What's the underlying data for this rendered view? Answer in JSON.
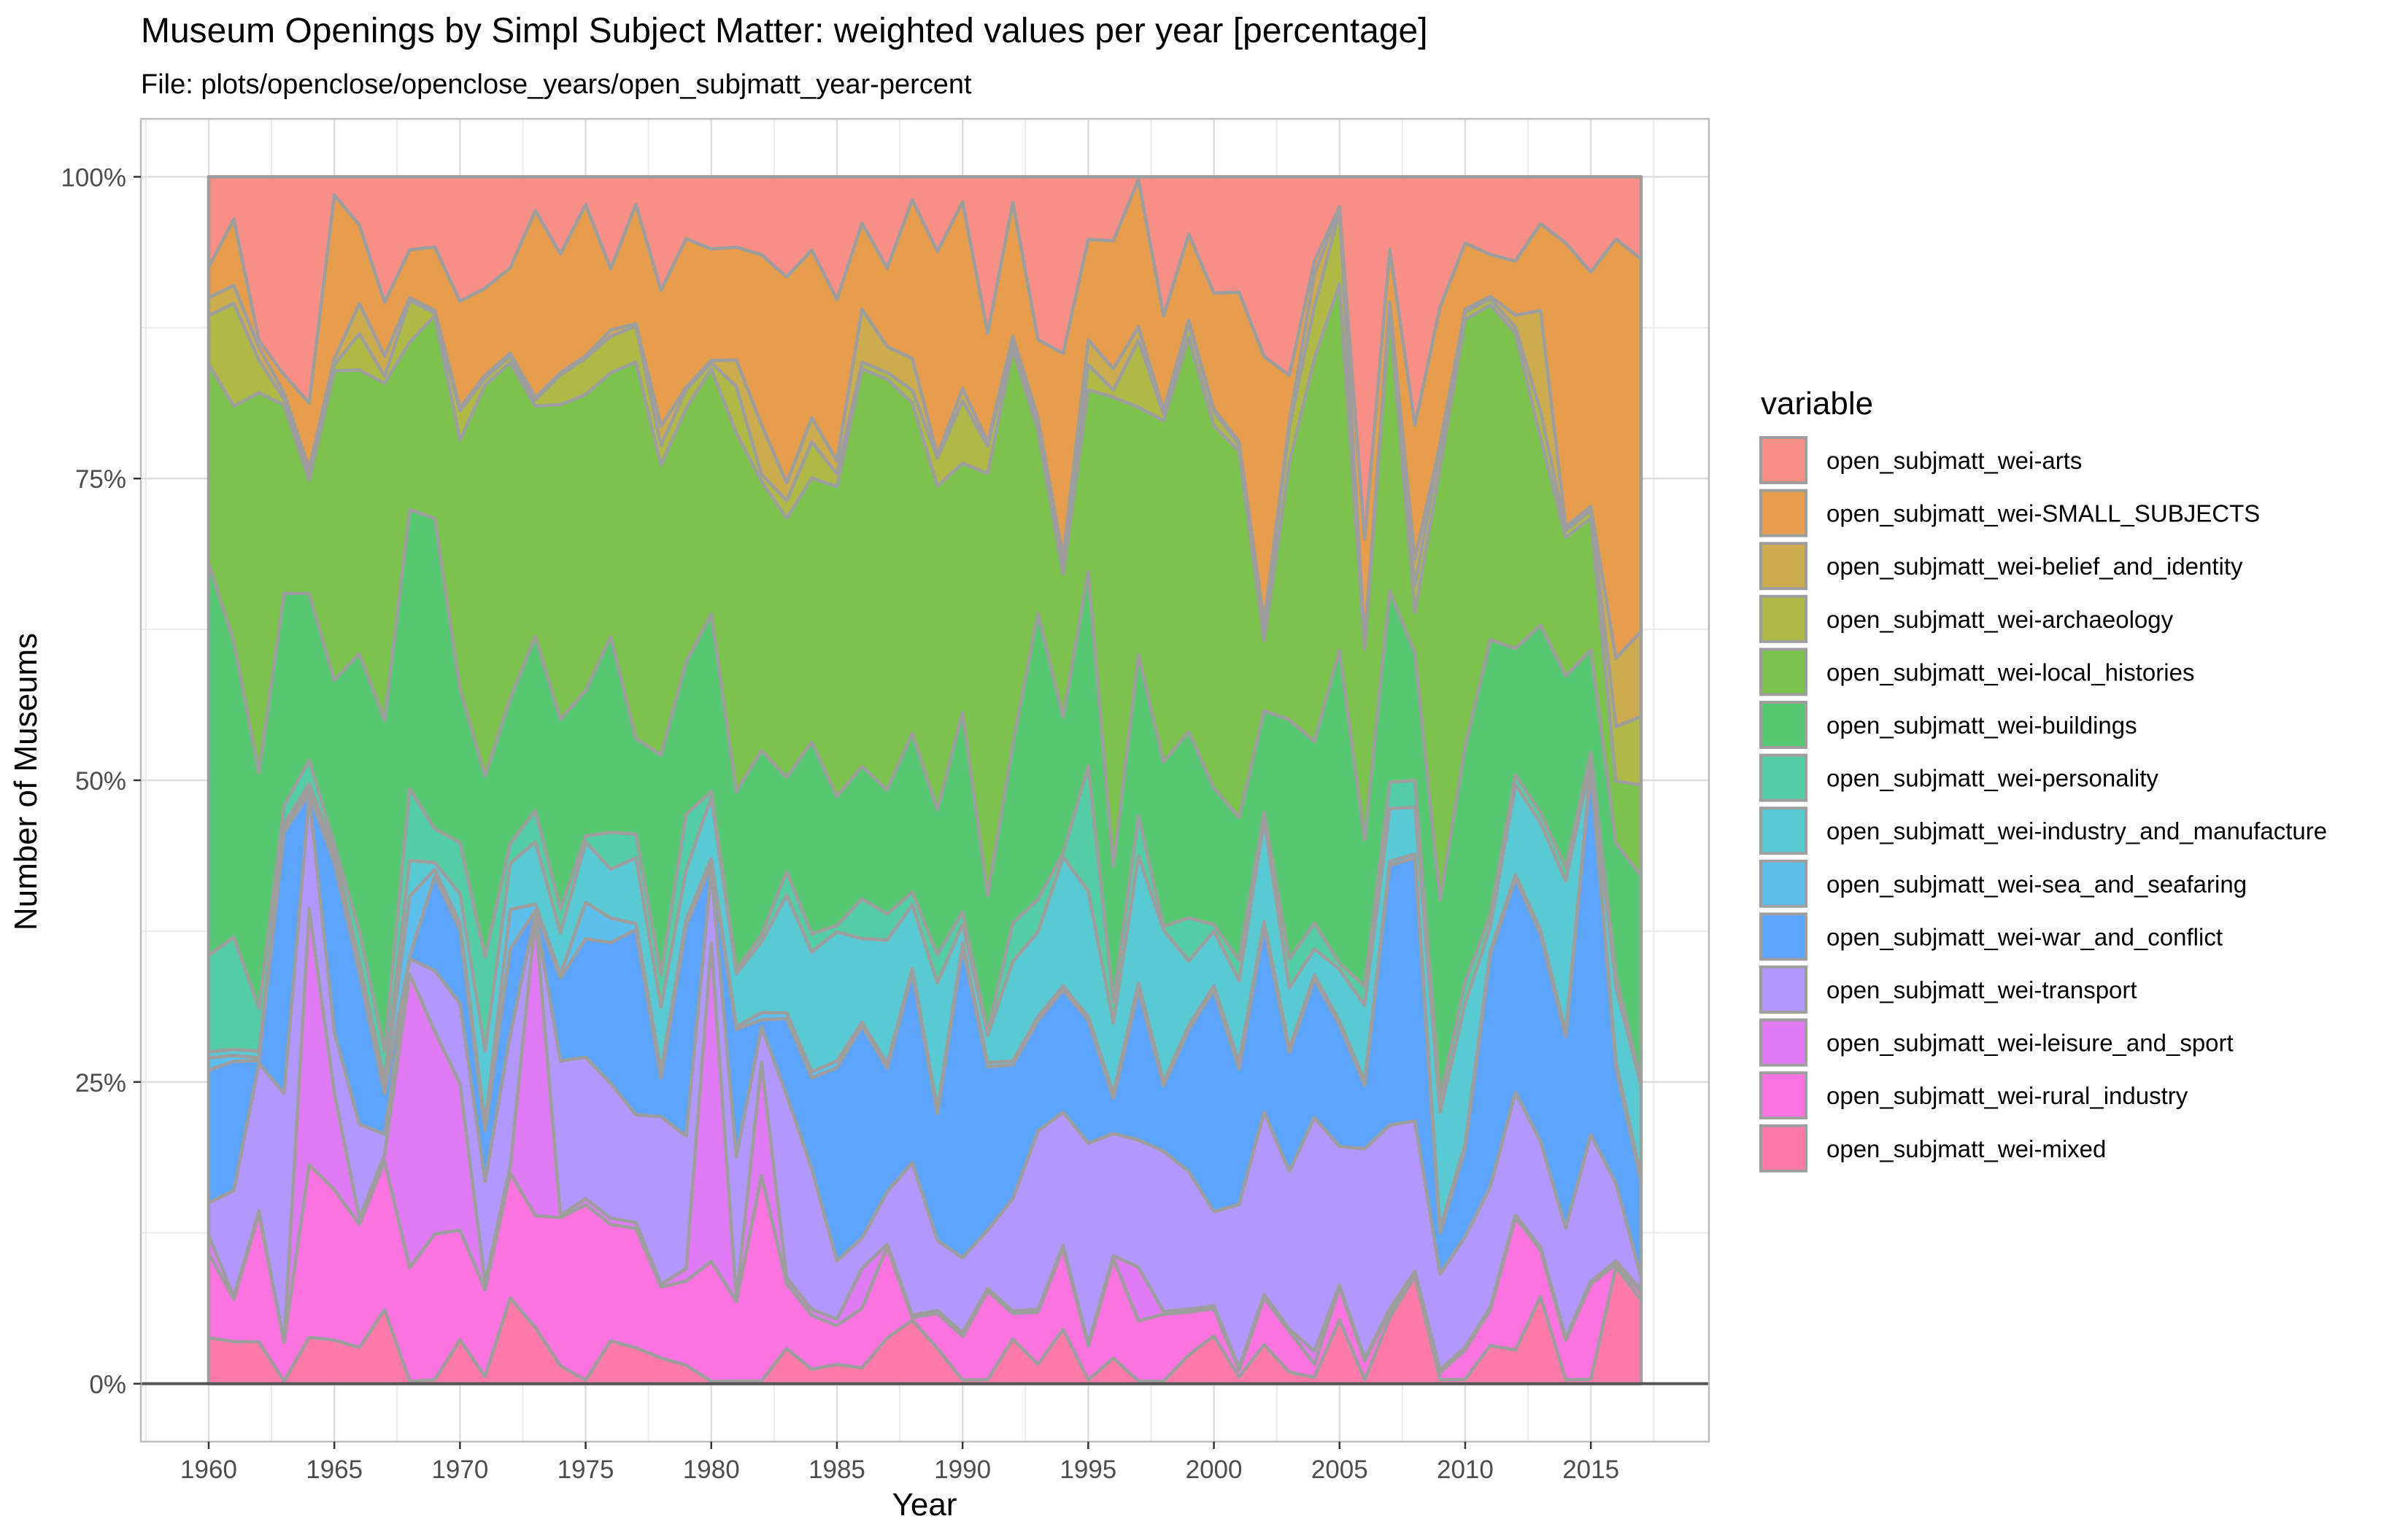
{
  "chart_data": {
    "type": "area",
    "stacking": "percent",
    "title": "Museum Openings by Simpl Subject Matter: weighted values per year [percentage]",
    "subtitle": "File: plots/openclose/openclose_years/open_subjmatt_year-percent",
    "xlabel": "Year",
    "ylabel": "Number of Museums",
    "xlim": [
      1957.3,
      2019.7
    ],
    "ylim": [
      -4.8,
      104.8
    ],
    "x_ticks": [
      1960,
      1965,
      1970,
      1975,
      1980,
      1985,
      1990,
      1995,
      2000,
      2005,
      2010,
      2015
    ],
    "y_ticks": [
      0,
      25,
      50,
      75,
      100
    ],
    "y_tick_labels": [
      "0%",
      "25%",
      "50%",
      "75%",
      "100%"
    ],
    "grid": true,
    "legend_title": "variable",
    "legend_position": "right",
    "x": [
      1960,
      1961,
      1962,
      1963,
      1964,
      1965,
      1966,
      1967,
      1968,
      1969,
      1970,
      1971,
      1972,
      1973,
      1974,
      1975,
      1976,
      1977,
      1978,
      1979,
      1980,
      1981,
      1982,
      1983,
      1984,
      1985,
      1986,
      1987,
      1988,
      1989,
      1990,
      1991,
      1992,
      1993,
      1994,
      1995,
      1996,
      1997,
      1998,
      1999,
      2000,
      2001,
      2002,
      2003,
      2004,
      2005,
      2006,
      2007,
      2008,
      2009,
      2010,
      2011,
      2012,
      2013,
      2014,
      2015,
      2016,
      2017
    ],
    "series": [
      {
        "name": "open_subjmatt_wei-mixed",
        "color": "#FF7AA8",
        "values": [
          3.8,
          3.5,
          3.2,
          0.2,
          3.9,
          3.6,
          3,
          5.5,
          0.2,
          0.3,
          3,
          0.5,
          6.5,
          4.5,
          1.5,
          0.3,
          3.5,
          3,
          2,
          1.5,
          0.2,
          0.2,
          0.2,
          3,
          1.2,
          1.5,
          1.2,
          3.5,
          5,
          2.5,
          0.3,
          0.3,
          3.5,
          1.5,
          4,
          0.3,
          1.8,
          0.2,
          0.2,
          2,
          3.5,
          0.5,
          2.5,
          1,
          0.5,
          5.3,
          0.3,
          5,
          8,
          0.3,
          0.3,
          3.2,
          2.8,
          6.5,
          0.3,
          0.3,
          7.5,
          5.5
        ]
      },
      {
        "name": "open_subjmatt_wei-rural_industry",
        "color": "#FA73DF",
        "values": [
          7,
          3.5,
          9.8,
          3.2,
          14.5,
          12.4,
          10.2,
          11,
          9.5,
          10.8,
          7.5,
          6,
          9.5,
          9,
          12.5,
          14.5,
          9.5,
          10,
          5.5,
          6.8,
          9.8,
          6,
          14.5,
          5.5,
          4.5,
          3,
          4.5,
          7,
          0.2,
          2.5,
          3.5,
          6.5,
          2,
          4,
          6,
          2.7,
          7,
          4.5,
          5.3,
          3,
          2,
          0.5,
          3,
          3.5,
          1,
          2.7,
          1.5,
          0.5,
          0.2,
          0.5,
          2,
          3,
          11,
          3.5,
          3,
          6.5,
          0.2,
          0.5
        ]
      },
      {
        "name": "open_subjmatt_wei-leisure_and_sport",
        "color": "#E17BF3",
        "values": [
          1.5,
          0.2,
          0.2,
          0,
          21.5,
          8,
          0.5,
          0.5,
          24.5,
          15,
          10,
          0.5,
          0.5,
          24,
          0.2,
          0.5,
          0.5,
          0.5,
          0.2,
          1,
          26,
          0.2,
          8,
          0.5,
          0.5,
          0.5,
          3,
          0.2,
          0.2,
          0.2,
          0.3,
          0.2,
          0.2,
          0.2,
          0.2,
          0.2,
          0.2,
          4,
          0.2,
          0.2,
          0.2,
          0.2,
          0.2,
          0.2,
          1,
          0.2,
          0.2,
          0.2,
          0.2,
          0.2,
          0.2,
          0.2,
          0.2,
          0.2,
          0.2,
          0.2,
          0.2,
          0.2
        ]
      },
      {
        "name": "open_subjmatt_wei-transport",
        "color": "#B298FC",
        "values": [
          2.7,
          8.8,
          11.3,
          20.5,
          9.5,
          5,
          7.8,
          1.5,
          1.3,
          4.5,
          5.5,
          7,
          10,
          0.2,
          13,
          11.7,
          11,
          9,
          13,
          10.7,
          5.9,
          10.7,
          2.5,
          15.5,
          11.7,
          4.5,
          2.3,
          4,
          12,
          5,
          6,
          4.3,
          8.8,
          13.7,
          9.8,
          16,
          8.6,
          9.5,
          12.7,
          9.6,
          6.9,
          12,
          11.7,
          13.5,
          18,
          11.5,
          16.5,
          13.9,
          11.2,
          7,
          7.5,
          10.1,
          10.2,
          7.9,
          8.3,
          10,
          5,
          0.8
        ]
      },
      {
        "name": "open_subjmatt_wei-war_and_conflict",
        "color": "#5CA4FC",
        "values": [
          11,
          10.7,
          0.2,
          21.5,
          0.2,
          14,
          12.5,
          3,
          0.2,
          7,
          5,
          3.5,
          6.5,
          0.3,
          7,
          9.8,
          11.5,
          15.5,
          3,
          17,
          0.5,
          9.6,
          0.5,
          6.5,
          7.6,
          15,
          16,
          9.5,
          15,
          9,
          25,
          12,
          10.5,
          8.5,
          9,
          9.8,
          2.5,
          11.2,
          5.2,
          9.9,
          16.2,
          10,
          11.9,
          10.2,
          10.7,
          10.1,
          5,
          19.7,
          19.6,
          3,
          6,
          19.4,
          17.8,
          15.5,
          14.5,
          24.9,
          7.5,
          6.3
        ]
      },
      {
        "name": "open_subjmatt_wei-sea_and_seafaring",
        "color": "#5DC0EC",
        "values": [
          1,
          0.5,
          0.2,
          0.5,
          0.5,
          0.5,
          0.5,
          0.5,
          5,
          0.5,
          0.5,
          0.5,
          3,
          0.5,
          0.3,
          3,
          2,
          0.5,
          0.5,
          0.5,
          0.5,
          0.2,
          0.5,
          0.5,
          0.5,
          0.5,
          0.3,
          0.3,
          0.3,
          0.3,
          0.3,
          0.3,
          0.3,
          0.3,
          0.3,
          0.3,
          0.3,
          0.5,
          0.3,
          0.3,
          0.3,
          0.5,
          0.3,
          0.3,
          0.3,
          0.3,
          0.3,
          0.3,
          0.3,
          0.3,
          0.3,
          0.3,
          0.3,
          0.3,
          0.3,
          0.3,
          0.3,
          0.3
        ]
      },
      {
        "name": "open_subjmatt_wei-industry_and_manufacture",
        "color": "#59C9D4",
        "values": [
          0.5,
          0.5,
          0.5,
          0.2,
          0.3,
          0.5,
          0.5,
          0.5,
          3,
          0.5,
          2,
          5,
          3.5,
          5,
          3.5,
          5,
          4,
          5.5,
          5,
          4,
          5,
          4,
          5,
          10,
          10,
          10,
          6.3,
          9.5,
          5,
          9,
          1.5,
          2,
          7.8,
          6.5,
          9.5,
          10,
          5,
          9.5,
          12,
          4.5,
          4,
          6,
          6.5,
          5.2,
          2,
          4.3,
          6,
          4,
          3.5,
          8.5,
          9.5,
          2,
          7.5,
          8,
          11.5,
          0.3,
          4.8,
          6
        ]
      },
      {
        "name": "open_subjmatt_wei-personality",
        "color": "#54CCA5",
        "values": [
          8,
          9.3,
          3.3,
          1.5,
          2,
          0.5,
          2.5,
          2.2,
          6,
          2.5,
          3.5,
          6.5,
          1.5,
          2.5,
          2,
          0.5,
          3,
          2,
          2.5,
          4.5,
          0.5,
          0.3,
          0.5,
          2,
          1.5,
          0.5,
          3,
          2,
          1,
          2,
          1,
          0.3,
          3,
          2.5,
          0.3,
          10,
          1.5,
          3,
          0.3,
          3,
          0.5,
          1.5,
          0.5,
          2.5,
          2,
          0.5,
          1.5,
          2,
          2,
          1,
          1.5,
          1,
          0.8,
          0.8,
          1,
          0.6,
          0.8,
          0.3
        ]
      },
      {
        "name": "open_subjmatt_wei-buildings",
        "color": "#57C872",
        "values": [
          32.5,
          24.5,
          18,
          17.5,
          14,
          13.5,
          23,
          24.5,
          23.3,
          23,
          10.5,
          12.5,
          11,
          14,
          16,
          12,
          16,
          8,
          17,
          12.3,
          14.5,
          13.4,
          13,
          8,
          16,
          10,
          10,
          9.5,
          12.5,
          10.3,
          16,
          10,
          14,
          22,
          10,
          15.5,
          9.5,
          12,
          13,
          13,
          10,
          10.5,
          6.5,
          20.5,
          14,
          26,
          11.5,
          14.5,
          9.5,
          14.5,
          16,
          23,
          10.5,
          14,
          14.5,
          7,
          8.5,
          13.5
        ]
      },
      {
        "name": "open_subjmatt_wei-local_histories",
        "color": "#7BC34C",
        "values": [
          16.5,
          19.5,
          29,
          15.5,
          9.5,
          25.5,
          23.5,
          25,
          14,
          15,
          17,
          27,
          25.5,
          18.5,
          26.5,
          24.5,
          21.5,
          31.5,
          22.5,
          20.5,
          20,
          27,
          19,
          22,
          22,
          24,
          30,
          31.5,
          26,
          23,
          20,
          31,
          31,
          14,
          10.5,
          14.5,
          33,
          18.5,
          27,
          27.5,
          26.5,
          27,
          4.5,
          22,
          29.5,
          30.4,
          15,
          21.2,
          3,
          31.5,
          29,
          28,
          26.2,
          14,
          10.5,
          9,
          4,
          6
        ]
      },
      {
        "name": "open_subjmatt_wei-archaeology",
        "color": "#AEBA45",
        "values": [
          4,
          8.5,
          2.5,
          0.5,
          0.5,
          0.5,
          3,
          0.5,
          3.5,
          0.2,
          2,
          0.5,
          0.5,
          0.5,
          2.5,
          3,
          3,
          3,
          1.5,
          1.5,
          0.5,
          3.5,
          0.5,
          1.5,
          3,
          1,
          0.5,
          0.5,
          1,
          2,
          5,
          2,
          0.5,
          0.5,
          1,
          2,
          0.5,
          5,
          0.5,
          1,
          1,
          0.5,
          1,
          3,
          4,
          6,
          0.5,
          0.5,
          2,
          1.5,
          0.5,
          0.5,
          0.5,
          2,
          0.5,
          0.5,
          3.5,
          4.5
        ]
      },
      {
        "name": "open_subjmatt_wei-belief_and_identity",
        "color": "#CCAC4F",
        "values": [
          1.5,
          1.5,
          1,
          0.5,
          0.5,
          0.5,
          2.5,
          1.5,
          0.2,
          0.2,
          0.2,
          0.2,
          0.2,
          0.2,
          0.2,
          0.2,
          0.5,
          0.2,
          1.5,
          0.2,
          0.2,
          2,
          3.5,
          1.5,
          2,
          1,
          4,
          2,
          2.5,
          0.2,
          1,
          0.3,
          0.5,
          0.5,
          0.3,
          2,
          1.5,
          1,
          0.3,
          0.2,
          0.2,
          0.2,
          0.2,
          0.5,
          2.5,
          0.2,
          0.2,
          0.2,
          2,
          0.2,
          0.2,
          0.2,
          1,
          7.5,
          0.3,
          0.3,
          4.4,
          5.6
        ]
      },
      {
        "name": "open_subjmatt_wei-SMALL_SUBJECTS",
        "color": "#E69D4C",
        "values": [
          2.5,
          5.5,
          0.5,
          1.5,
          5.5,
          13.5,
          6.5,
          4,
          4,
          4.7,
          7.3,
          6,
          6.5,
          15,
          10,
          12.5,
          5,
          10,
          10.5,
          12,
          9.1,
          8.5,
          12,
          17.5,
          14,
          12.5,
          6.5,
          6,
          12.5,
          14.5,
          15,
          8,
          10.5,
          6,
          15,
          8,
          9,
          11,
          7.5,
          6,
          8.5,
          11,
          17,
          4,
          1,
          0.2,
          8,
          4,
          10,
          10,
          4.5,
          3.5,
          4.5,
          6.5,
          21.5,
          16,
          27,
          24.5
        ]
      },
      {
        "name": "open_subjmatt_wei-arts",
        "color": "#F88F86",
        "values": [
          7.5,
          3.5,
          12.5,
          16.3,
          19,
          1.5,
          4,
          9.3,
          6.1,
          5.2,
          8.5,
          7.7,
          6.9,
          2.7,
          6.5,
          2.3,
          7.5,
          2.3,
          8.8,
          5,
          5.9,
          5.3,
          5.5,
          8.5,
          6.1,
          9.5,
          3.5,
          7,
          1.8,
          5.3,
          2,
          11.5,
          2,
          12.5,
          13,
          5,
          4.5,
          0.2,
          11,
          4,
          8.5,
          8.5,
          11.5,
          17,
          6.5,
          2.5,
          28.5,
          5.5,
          18.5,
          9.5,
          4.5,
          6.5,
          7,
          3.5,
          5,
          6.5,
          4,
          5.4
        ]
      }
    ]
  }
}
